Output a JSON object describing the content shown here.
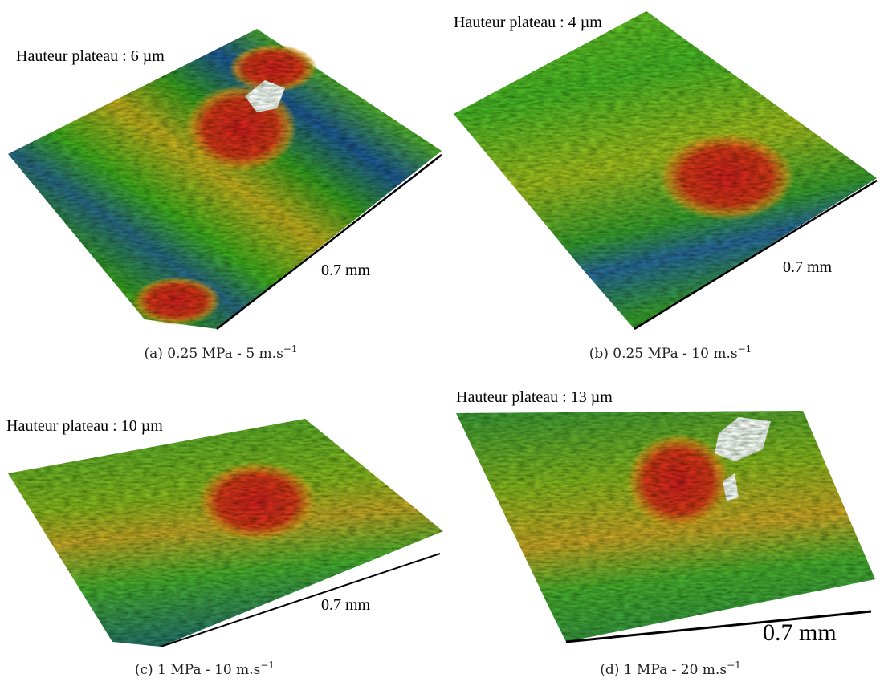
{
  "panels": [
    {
      "label": "Hauteur plateau : 6 µm",
      "scale": "0.7 mm",
      "caption": "(a) 0.25 MPa - 5 m.s",
      "caption_sup": "−1"
    },
    {
      "label": "Hauteur plateau : 4 µm",
      "scale": "0.7 mm",
      "caption": "(b) 0.25 MPa - 10 m.s",
      "caption_sup": "−1"
    },
    {
      "label": "Hauteur plateau : 10 µm",
      "scale": "0.7 mm",
      "caption": "(c) 1 MPa - 10 m.s",
      "caption_sup": "−1"
    },
    {
      "label": "Hauteur plateau : 13 µm",
      "scale": "0.7 mm",
      "caption": "(d) 1 MPa - 20 m.s",
      "caption_sup": "−1"
    }
  ]
}
